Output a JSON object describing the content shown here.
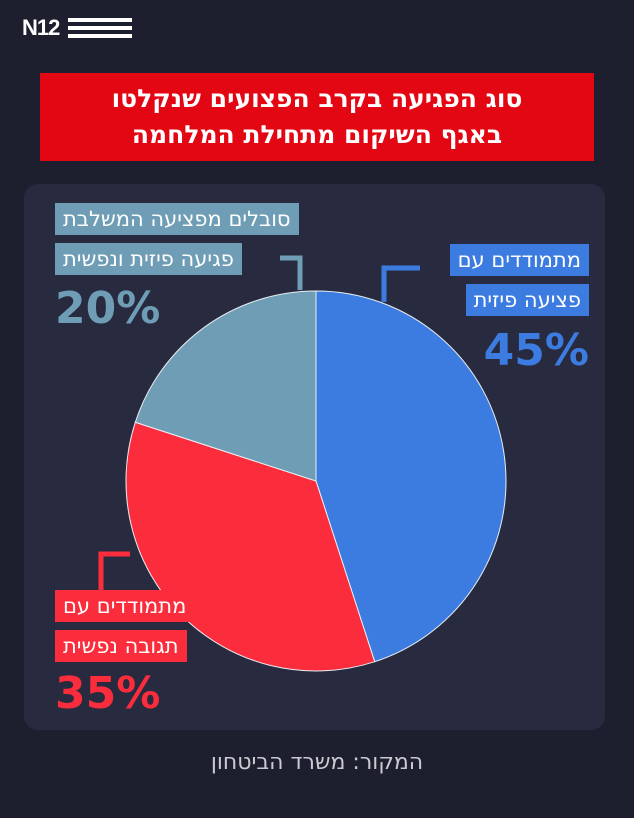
{
  "brand": {
    "logo_text": "N12"
  },
  "chart_data": {
    "type": "pie",
    "title": "סוג הפגיעה בקרב הפצועים שנקלטו\nבאגף השיקום מתחילת המלחמה",
    "start_angle_deg": 0,
    "direction": "clockwise",
    "slices": [
      {
        "label_lines": [
          "מתמודדים עם",
          "פציעה פיזית"
        ],
        "percent_label": "45%",
        "value": 45,
        "color": "#3c7ce0"
      },
      {
        "label_lines": [
          "מתמודדים עם",
          "תגובה נפשית"
        ],
        "percent_label": "35%",
        "value": 35,
        "color": "#fb2c3b"
      },
      {
        "label_lines": [
          "סובלים מפציעה המשלבת",
          "פגיעה פיזית ונפשית"
        ],
        "percent_label": "20%",
        "value": 20,
        "color": "#6e9db5"
      }
    ]
  },
  "source": "המקור: משרד הביטחון"
}
